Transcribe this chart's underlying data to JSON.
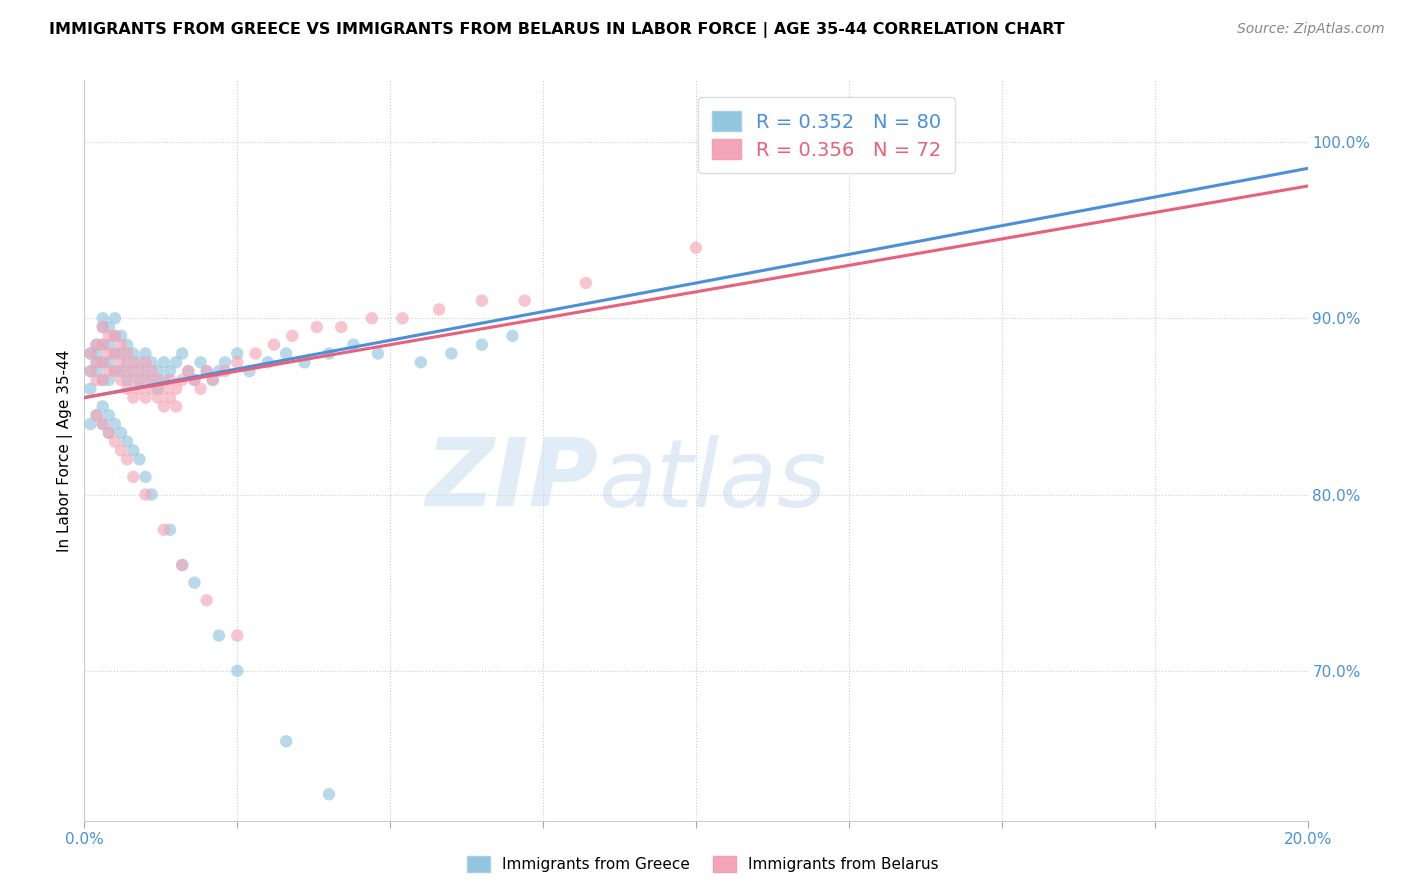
{
  "title": "IMMIGRANTS FROM GREECE VS IMMIGRANTS FROM BELARUS IN LABOR FORCE | AGE 35-44 CORRELATION CHART",
  "source": "Source: ZipAtlas.com",
  "ylabel": "In Labor Force | Age 35-44",
  "xlim": [
    0.0,
    0.2
  ],
  "ylim": [
    0.615,
    1.035
  ],
  "xtick_pos": [
    0.0,
    0.025,
    0.05,
    0.075,
    0.1,
    0.125,
    0.15,
    0.175,
    0.2
  ],
  "ytick_right_vals": [
    0.7,
    0.8,
    0.9,
    1.0
  ],
  "ytick_right_labels": [
    "70.0%",
    "80.0%",
    "90.0%",
    "100.0%"
  ],
  "greece_R": 0.352,
  "greece_N": 80,
  "belarus_R": 0.356,
  "belarus_N": 72,
  "greece_color": "#92c5de",
  "belarus_color": "#f4a6b8",
  "greece_line_color": "#4a90d9",
  "belarus_line_color": "#e8607a",
  "watermark_zip": "ZIP",
  "watermark_atlas": "atlas",
  "greece_x": [
    0.001,
    0.001,
    0.001,
    0.002,
    0.002,
    0.002,
    0.002,
    0.003,
    0.003,
    0.003,
    0.003,
    0.003,
    0.004,
    0.004,
    0.004,
    0.004,
    0.005,
    0.005,
    0.005,
    0.005,
    0.006,
    0.006,
    0.006,
    0.007,
    0.007,
    0.007,
    0.008,
    0.008,
    0.009,
    0.009,
    0.01,
    0.01,
    0.011,
    0.011,
    0.012,
    0.012,
    0.013,
    0.013,
    0.014,
    0.015,
    0.016,
    0.017,
    0.018,
    0.019,
    0.02,
    0.021,
    0.022,
    0.023,
    0.025,
    0.027,
    0.03,
    0.033,
    0.036,
    0.04,
    0.044,
    0.048,
    0.055,
    0.06,
    0.065,
    0.07,
    0.001,
    0.002,
    0.003,
    0.003,
    0.004,
    0.004,
    0.005,
    0.006,
    0.007,
    0.008,
    0.009,
    0.01,
    0.011,
    0.014,
    0.016,
    0.018,
    0.022,
    0.025,
    0.033,
    0.04
  ],
  "greece_y": [
    0.88,
    0.87,
    0.86,
    0.885,
    0.88,
    0.875,
    0.87,
    0.9,
    0.895,
    0.885,
    0.875,
    0.865,
    0.895,
    0.885,
    0.875,
    0.865,
    0.9,
    0.89,
    0.88,
    0.87,
    0.89,
    0.88,
    0.87,
    0.885,
    0.875,
    0.865,
    0.88,
    0.87,
    0.875,
    0.865,
    0.88,
    0.87,
    0.875,
    0.865,
    0.87,
    0.86,
    0.875,
    0.865,
    0.87,
    0.875,
    0.88,
    0.87,
    0.865,
    0.875,
    0.87,
    0.865,
    0.87,
    0.875,
    0.88,
    0.87,
    0.875,
    0.88,
    0.875,
    0.88,
    0.885,
    0.88,
    0.875,
    0.88,
    0.885,
    0.89,
    0.84,
    0.845,
    0.85,
    0.84,
    0.845,
    0.835,
    0.84,
    0.835,
    0.83,
    0.825,
    0.82,
    0.81,
    0.8,
    0.78,
    0.76,
    0.75,
    0.72,
    0.7,
    0.66,
    0.63
  ],
  "belarus_x": [
    0.001,
    0.001,
    0.002,
    0.002,
    0.002,
    0.003,
    0.003,
    0.003,
    0.003,
    0.004,
    0.004,
    0.004,
    0.005,
    0.005,
    0.005,
    0.006,
    0.006,
    0.006,
    0.007,
    0.007,
    0.007,
    0.008,
    0.008,
    0.008,
    0.009,
    0.009,
    0.01,
    0.01,
    0.01,
    0.011,
    0.011,
    0.012,
    0.012,
    0.013,
    0.013,
    0.014,
    0.014,
    0.015,
    0.015,
    0.016,
    0.017,
    0.018,
    0.019,
    0.02,
    0.021,
    0.023,
    0.025,
    0.028,
    0.031,
    0.034,
    0.038,
    0.042,
    0.047,
    0.052,
    0.058,
    0.065,
    0.072,
    0.082,
    0.1,
    0.13,
    0.002,
    0.003,
    0.004,
    0.005,
    0.006,
    0.007,
    0.008,
    0.01,
    0.013,
    0.016,
    0.02,
    0.025
  ],
  "belarus_y": [
    0.88,
    0.87,
    0.885,
    0.875,
    0.865,
    0.895,
    0.885,
    0.875,
    0.865,
    0.89,
    0.88,
    0.87,
    0.89,
    0.88,
    0.87,
    0.885,
    0.875,
    0.865,
    0.88,
    0.87,
    0.86,
    0.875,
    0.865,
    0.855,
    0.87,
    0.86,
    0.875,
    0.865,
    0.855,
    0.87,
    0.86,
    0.865,
    0.855,
    0.86,
    0.85,
    0.865,
    0.855,
    0.86,
    0.85,
    0.865,
    0.87,
    0.865,
    0.86,
    0.87,
    0.865,
    0.87,
    0.875,
    0.88,
    0.885,
    0.89,
    0.895,
    0.895,
    0.9,
    0.9,
    0.905,
    0.91,
    0.91,
    0.92,
    0.94,
    1.0,
    0.845,
    0.84,
    0.835,
    0.83,
    0.825,
    0.82,
    0.81,
    0.8,
    0.78,
    0.76,
    0.74,
    0.72
  ],
  "greece_line_x0": 0.0,
  "greece_line_y0": 0.855,
  "greece_line_x1": 0.2,
  "greece_line_y1": 0.985,
  "belarus_line_x0": 0.0,
  "belarus_line_y0": 0.855,
  "belarus_line_x1": 0.2,
  "belarus_line_y1": 0.975
}
